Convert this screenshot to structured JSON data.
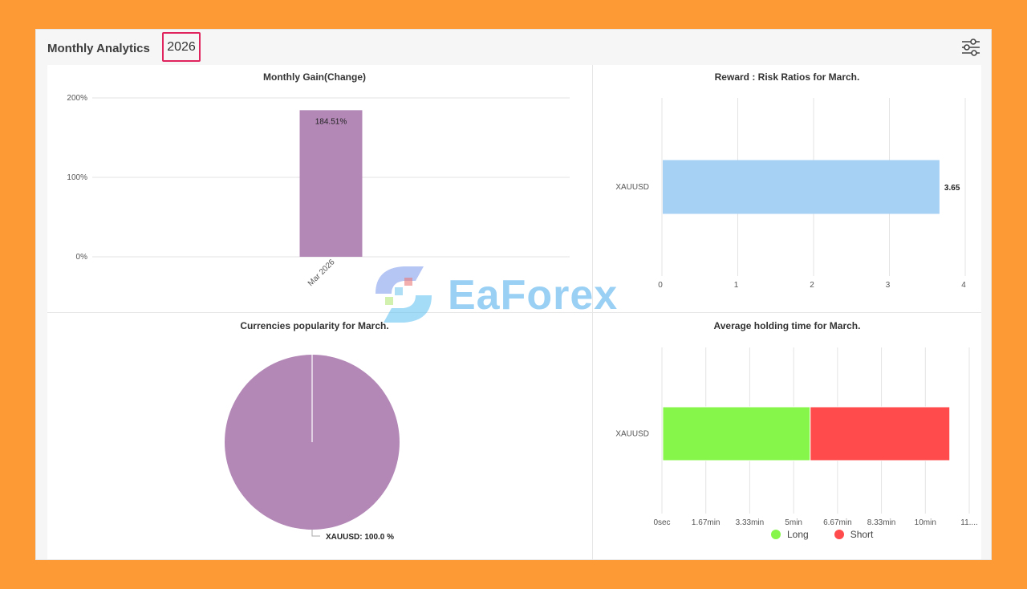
{
  "header": {
    "title": "Monthly Analytics",
    "year": "2026"
  },
  "watermark": {
    "text": "EaForex"
  },
  "gain_chart": {
    "title": "Monthly Gain(Change)",
    "chart_data": {
      "type": "bar",
      "categories": [
        "Mar 2026"
      ],
      "values": [
        184.51
      ],
      "value_labels": [
        "184.51%"
      ],
      "y_ticks": [
        "0%",
        "100%",
        "200%"
      ],
      "ylim": [
        0,
        200
      ],
      "bar_color": "#b388b7"
    }
  },
  "risk_chart": {
    "title": "Reward : Risk Ratios for March.",
    "chart_data": {
      "type": "bar",
      "orientation": "horizontal",
      "categories": [
        "XAUUSD"
      ],
      "values": [
        3.65
      ],
      "value_labels": [
        "3.65"
      ],
      "x_ticks": [
        "0",
        "1",
        "2",
        "3",
        "4"
      ],
      "xlim": [
        0,
        4
      ],
      "bar_color": "#a6d1f5"
    }
  },
  "pie_chart": {
    "title": "Currencies popularity for March.",
    "chart_data": {
      "type": "pie",
      "labels": [
        "XAUUSD"
      ],
      "values": [
        100.0
      ],
      "slice_label": "XAUUSD: 100.0 %",
      "color": "#b388b7"
    }
  },
  "holding_chart": {
    "title": "Average holding time for March.",
    "chart_data": {
      "type": "bar",
      "orientation": "horizontal",
      "stacked": true,
      "categories": [
        "XAUUSD"
      ],
      "x_ticks": [
        "0sec",
        "1.67min",
        "3.33min",
        "5min",
        "6.67min",
        "8.33min",
        "10min",
        "11...."
      ],
      "series": [
        {
          "name": "Long",
          "values": [
            5.6
          ],
          "color": "#86f74a"
        },
        {
          "name": "Short",
          "values": [
            5.3
          ],
          "color": "#ff4b4b"
        }
      ],
      "xlim": [
        0,
        11.67
      ]
    },
    "legend": [
      {
        "label": "Long",
        "color": "#86f74a"
      },
      {
        "label": "Short",
        "color": "#ff4b4b"
      }
    ]
  }
}
